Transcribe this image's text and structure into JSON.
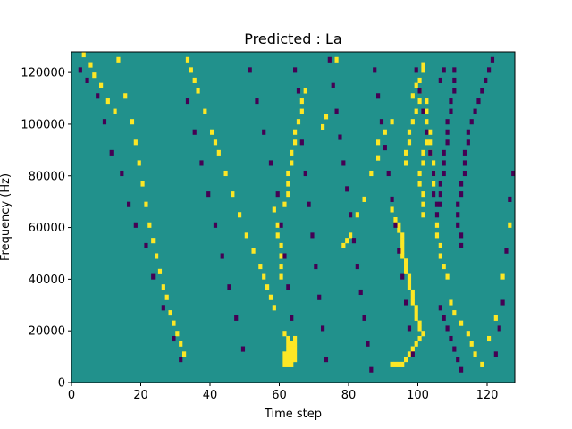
{
  "chart_data": {
    "type": "heatmap",
    "title": "Predicted : La",
    "xlabel": "Time step",
    "ylabel": "Frequency (Hz)",
    "xlim": [
      0,
      128
    ],
    "ylim": [
      0,
      128000
    ],
    "x_ticks": [
      0,
      20,
      40,
      60,
      80,
      100,
      120
    ],
    "y_ticks": [
      0,
      20000,
      40000,
      60000,
      80000,
      100000,
      120000
    ],
    "n_time_steps": 128,
    "n_freq_bins": 64,
    "bin_height_hz": 2000,
    "grid": false,
    "legend": "none",
    "colormap": "viridis",
    "values_legend": {
      "-1": "low (dark purple)",
      "0": "background (teal)",
      "1": "high (yellow)"
    },
    "colors": {
      "low": "#440154",
      "background": "#21918c",
      "high": "#fde725"
    },
    "description_note": "",
    "cells": {
      "high": [
        [
          3,
          63
        ],
        [
          5,
          61
        ],
        [
          6,
          59
        ],
        [
          8,
          57
        ],
        [
          10,
          54
        ],
        [
          12,
          52
        ],
        [
          13,
          62
        ],
        [
          15,
          55
        ],
        [
          17,
          50
        ],
        [
          18,
          46
        ],
        [
          19,
          42
        ],
        [
          20,
          38
        ],
        [
          21,
          34
        ],
        [
          22,
          30
        ],
        [
          23,
          27
        ],
        [
          24,
          24
        ],
        [
          25,
          21
        ],
        [
          26,
          18
        ],
        [
          27,
          16
        ],
        [
          28,
          13
        ],
        [
          29,
          11
        ],
        [
          30,
          9
        ],
        [
          31,
          7
        ],
        [
          32,
          5
        ],
        [
          33,
          62
        ],
        [
          34,
          60
        ],
        [
          35,
          58
        ],
        [
          36,
          56
        ],
        [
          38,
          52
        ],
        [
          40,
          48
        ],
        [
          41,
          46
        ],
        [
          42,
          44
        ],
        [
          44,
          40
        ],
        [
          46,
          36
        ],
        [
          48,
          32
        ],
        [
          50,
          28
        ],
        [
          52,
          25
        ],
        [
          54,
          22
        ],
        [
          55,
          20
        ],
        [
          56,
          18
        ],
        [
          57,
          16
        ],
        [
          58,
          14
        ],
        [
          58,
          33
        ],
        [
          59,
          30
        ],
        [
          59,
          28
        ],
        [
          60,
          26
        ],
        [
          60,
          24
        ],
        [
          60,
          22
        ],
        [
          60,
          20
        ],
        [
          61,
          3
        ],
        [
          61,
          4
        ],
        [
          61,
          5
        ],
        [
          61,
          9
        ],
        [
          62,
          3
        ],
        [
          62,
          4
        ],
        [
          62,
          5
        ],
        [
          62,
          6
        ],
        [
          62,
          7
        ],
        [
          62,
          8
        ],
        [
          63,
          3
        ],
        [
          63,
          4
        ],
        [
          63,
          5
        ],
        [
          63,
          6
        ],
        [
          63,
          7
        ],
        [
          64,
          4
        ],
        [
          64,
          5
        ],
        [
          64,
          6
        ],
        [
          64,
          7
        ],
        [
          64,
          8
        ],
        [
          61,
          34
        ],
        [
          62,
          36
        ],
        [
          62,
          38
        ],
        [
          62,
          40
        ],
        [
          63,
          42
        ],
        [
          63,
          44
        ],
        [
          64,
          46
        ],
        [
          64,
          48
        ],
        [
          65,
          50
        ],
        [
          66,
          52
        ],
        [
          66,
          54
        ],
        [
          67,
          56
        ],
        [
          72,
          49
        ],
        [
          73,
          51
        ],
        [
          76,
          62
        ],
        [
          78,
          26
        ],
        [
          79,
          27
        ],
        [
          80,
          28
        ],
        [
          82,
          32
        ],
        [
          84,
          35
        ],
        [
          86,
          40
        ],
        [
          88,
          43
        ],
        [
          88,
          46
        ],
        [
          90,
          48
        ],
        [
          92,
          50
        ],
        [
          92,
          33
        ],
        [
          93,
          31
        ],
        [
          94,
          30
        ],
        [
          94,
          29
        ],
        [
          95,
          28
        ],
        [
          95,
          27
        ],
        [
          95,
          26
        ],
        [
          95,
          25
        ],
        [
          95,
          24
        ],
        [
          96,
          23
        ],
        [
          96,
          22
        ],
        [
          96,
          21
        ],
        [
          97,
          20
        ],
        [
          97,
          19
        ],
        [
          97,
          18
        ],
        [
          98,
          17
        ],
        [
          98,
          16
        ],
        [
          98,
          15
        ],
        [
          99,
          14
        ],
        [
          99,
          13
        ],
        [
          99,
          12
        ],
        [
          100,
          11
        ],
        [
          100,
          10
        ],
        [
          92,
          3
        ],
        [
          93,
          3
        ],
        [
          94,
          3
        ],
        [
          95,
          3
        ],
        [
          96,
          4
        ],
        [
          97,
          5
        ],
        [
          98,
          6
        ],
        [
          99,
          7
        ],
        [
          100,
          8
        ],
        [
          101,
          9
        ],
        [
          101,
          36
        ],
        [
          101,
          34
        ],
        [
          101,
          32
        ],
        [
          98,
          55
        ],
        [
          99,
          57
        ],
        [
          100,
          58
        ],
        [
          100,
          56
        ],
        [
          100,
          54
        ],
        [
          101,
          60
        ],
        [
          101,
          61
        ],
        [
          102,
          50
        ],
        [
          102,
          52
        ],
        [
          102,
          54
        ],
        [
          103,
          48
        ],
        [
          103,
          46
        ],
        [
          103,
          44
        ],
        [
          104,
          42
        ],
        [
          104,
          40
        ],
        [
          104,
          38
        ],
        [
          105,
          30
        ],
        [
          105,
          28
        ],
        [
          106,
          26
        ],
        [
          106,
          24
        ],
        [
          107,
          22
        ],
        [
          108,
          20
        ],
        [
          100,
          38
        ],
        [
          100,
          40
        ],
        [
          101,
          42
        ],
        [
          101,
          44
        ],
        [
          102,
          46
        ],
        [
          96,
          42
        ],
        [
          96,
          44
        ],
        [
          97,
          46
        ],
        [
          97,
          48
        ],
        [
          98,
          50
        ],
        [
          99,
          52
        ],
        [
          109,
          15
        ],
        [
          110,
          13
        ],
        [
          112,
          11
        ],
        [
          114,
          9
        ],
        [
          115,
          7
        ],
        [
          116,
          5
        ],
        [
          118,
          3
        ],
        [
          120,
          8
        ],
        [
          122,
          12
        ],
        [
          124,
          20
        ],
        [
          126,
          30
        ]
      ],
      "low": [
        [
          2,
          60
        ],
        [
          4,
          58
        ],
        [
          7,
          55
        ],
        [
          9,
          50
        ],
        [
          11,
          44
        ],
        [
          14,
          40
        ],
        [
          16,
          34
        ],
        [
          18,
          30
        ],
        [
          21,
          26
        ],
        [
          23,
          20
        ],
        [
          26,
          14
        ],
        [
          29,
          8
        ],
        [
          31,
          4
        ],
        [
          33,
          54
        ],
        [
          35,
          48
        ],
        [
          37,
          42
        ],
        [
          39,
          36
        ],
        [
          41,
          30
        ],
        [
          43,
          24
        ],
        [
          45,
          18
        ],
        [
          47,
          12
        ],
        [
          49,
          6
        ],
        [
          51,
          60
        ],
        [
          53,
          54
        ],
        [
          55,
          48
        ],
        [
          57,
          42
        ],
        [
          59,
          36
        ],
        [
          60,
          30
        ],
        [
          61,
          24
        ],
        [
          62,
          18
        ],
        [
          63,
          12
        ],
        [
          64,
          60
        ],
        [
          65,
          56
        ],
        [
          66,
          46
        ],
        [
          67,
          40
        ],
        [
          68,
          34
        ],
        [
          69,
          28
        ],
        [
          70,
          22
        ],
        [
          71,
          16
        ],
        [
          72,
          10
        ],
        [
          73,
          4
        ],
        [
          74,
          62
        ],
        [
          75,
          57
        ],
        [
          76,
          52
        ],
        [
          77,
          47
        ],
        [
          78,
          42
        ],
        [
          79,
          37
        ],
        [
          80,
          32
        ],
        [
          81,
          27
        ],
        [
          82,
          22
        ],
        [
          83,
          17
        ],
        [
          84,
          12
        ],
        [
          85,
          7
        ],
        [
          86,
          2
        ],
        [
          87,
          60
        ],
        [
          88,
          55
        ],
        [
          89,
          50
        ],
        [
          90,
          45
        ],
        [
          91,
          40
        ],
        [
          92,
          35
        ],
        [
          93,
          30
        ],
        [
          94,
          25
        ],
        [
          95,
          20
        ],
        [
          96,
          15
        ],
        [
          97,
          10
        ],
        [
          98,
          5
        ],
        [
          99,
          60
        ],
        [
          100,
          56
        ],
        [
          101,
          52
        ],
        [
          102,
          48
        ],
        [
          103,
          44
        ],
        [
          104,
          40
        ],
        [
          104,
          36
        ],
        [
          105,
          32
        ],
        [
          105,
          34
        ],
        [
          106,
          34
        ],
        [
          106,
          36
        ],
        [
          106,
          38
        ],
        [
          107,
          40
        ],
        [
          107,
          42
        ],
        [
          107,
          44
        ],
        [
          108,
          46
        ],
        [
          108,
          48
        ],
        [
          108,
          50
        ],
        [
          109,
          52
        ],
        [
          109,
          54
        ],
        [
          110,
          56
        ],
        [
          110,
          58
        ],
        [
          110,
          60
        ],
        [
          111,
          30
        ],
        [
          111,
          32
        ],
        [
          111,
          34
        ],
        [
          112,
          28
        ],
        [
          112,
          26
        ],
        [
          112,
          36
        ],
        [
          112,
          38
        ],
        [
          113,
          40
        ],
        [
          113,
          42
        ],
        [
          113,
          44
        ],
        [
          114,
          46
        ],
        [
          114,
          48
        ],
        [
          115,
          50
        ],
        [
          116,
          52
        ],
        [
          117,
          54
        ],
        [
          118,
          56
        ],
        [
          119,
          58
        ],
        [
          120,
          60
        ],
        [
          121,
          62
        ],
        [
          122,
          5
        ],
        [
          123,
          10
        ],
        [
          124,
          15
        ],
        [
          125,
          25
        ],
        [
          126,
          35
        ],
        [
          127,
          40
        ],
        [
          106,
          58
        ],
        [
          107,
          60
        ],
        [
          106,
          14
        ],
        [
          107,
          12
        ],
        [
          108,
          10
        ],
        [
          109,
          8
        ],
        [
          110,
          6
        ],
        [
          111,
          4
        ],
        [
          112,
          2
        ]
      ]
    }
  }
}
